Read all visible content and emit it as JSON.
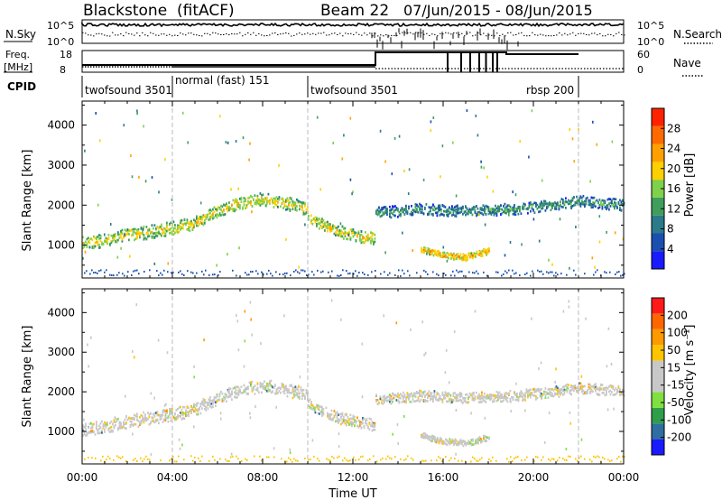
{
  "header": {
    "station": "Blackstone",
    "mode": "(fitACF)",
    "beam": "Beam 22",
    "date_range": "07/Jun/2015 - 08/Jun/2015"
  },
  "top_panels": {
    "nsky_label": "N.Sky",
    "nsearch_label": "N.Search",
    "nsky_ticks": [
      "10^5",
      "10^0"
    ],
    "nsearch_ticks": [
      "10^5",
      "10^0"
    ],
    "freq_label_line1": "Freq.",
    "freq_label_line2": "[MHz]",
    "freq_ticks": [
      "18",
      "8"
    ],
    "nave_label": "Nave",
    "nave_ticks": [
      "60",
      "0"
    ],
    "cpid_label": "CPID"
  },
  "cpid_segments": [
    {
      "label": "twofsound 3501",
      "start_hr": 0.0
    },
    {
      "label": "normal (fast) 151",
      "start_hr": 4.0
    },
    {
      "label": "twofsound 3501",
      "start_hr": 10.0
    },
    {
      "label": "rbsp 200",
      "start_hr": 22.0
    }
  ],
  "colors": {
    "power": [
      "#1a1aff",
      "#1a4fb0",
      "#2b7a8a",
      "#3f9e5c",
      "#7fd04a",
      "#ffd000",
      "#ffa000",
      "#ff6a00",
      "#ff2200"
    ],
    "velocity": [
      "#ff1a1a",
      "#ff6600",
      "#ff9900",
      "#ffc400",
      "#c8c8c8",
      "#c8c8c8",
      "#80e040",
      "#2f9e4a",
      "#2e6ea0",
      "#1a1aff"
    ]
  },
  "chart_data": [
    {
      "type": "heatmap",
      "name": "power",
      "xlabel": "",
      "ylabel": "Slant Range [km]",
      "xlim": [
        0,
        24
      ],
      "ylim": [
        180,
        4600
      ],
      "y_ticks": [
        "1000",
        "2000",
        "3000",
        "4000"
      ],
      "colorbar_label": "Power [dB]",
      "colorbar_ticks": [
        "4",
        "8",
        "12",
        "16",
        "20",
        "24",
        "28"
      ],
      "colorbar_range": [
        0,
        32
      ],
      "bands": [
        {
          "t": [
            0,
            1,
            2,
            3,
            4,
            5,
            6,
            7,
            8,
            9,
            10
          ],
          "r": [
            1050,
            1120,
            1250,
            1330,
            1430,
            1550,
            1850,
            2050,
            2150,
            2050,
            1900
          ],
          "width": 330,
          "power": 20
        },
        {
          "t": [
            10,
            11,
            12,
            13
          ],
          "r": [
            1700,
            1400,
            1250,
            1150
          ],
          "width": 300,
          "power": 20
        },
        {
          "t": [
            13,
            15,
            17,
            19,
            21,
            22,
            24
          ],
          "r": [
            1800,
            1900,
            1850,
            1900,
            2000,
            2100,
            2000
          ],
          "width": 280,
          "power": 12
        },
        {
          "t": [
            15,
            16,
            17,
            18
          ],
          "r": [
            900,
            750,
            700,
            850
          ],
          "width": 160,
          "power": 24
        }
      ]
    },
    {
      "type": "heatmap",
      "name": "velocity",
      "xlabel": "Time UT",
      "ylabel": "Slant Range [km]",
      "xlim": [
        0,
        24
      ],
      "ylim": [
        180,
        4600
      ],
      "x_ticks": [
        "00:00",
        "04:00",
        "08:00",
        "12:00",
        "16:00",
        "20:00",
        "00:00"
      ],
      "y_ticks": [
        "1000",
        "2000",
        "3000",
        "4000"
      ],
      "colorbar_label": "Velocity [m s⁻¹]",
      "colorbar_ticks": [
        "200",
        "100",
        "50",
        "15",
        "-15",
        "-50",
        "-100",
        "-200"
      ]
    }
  ]
}
